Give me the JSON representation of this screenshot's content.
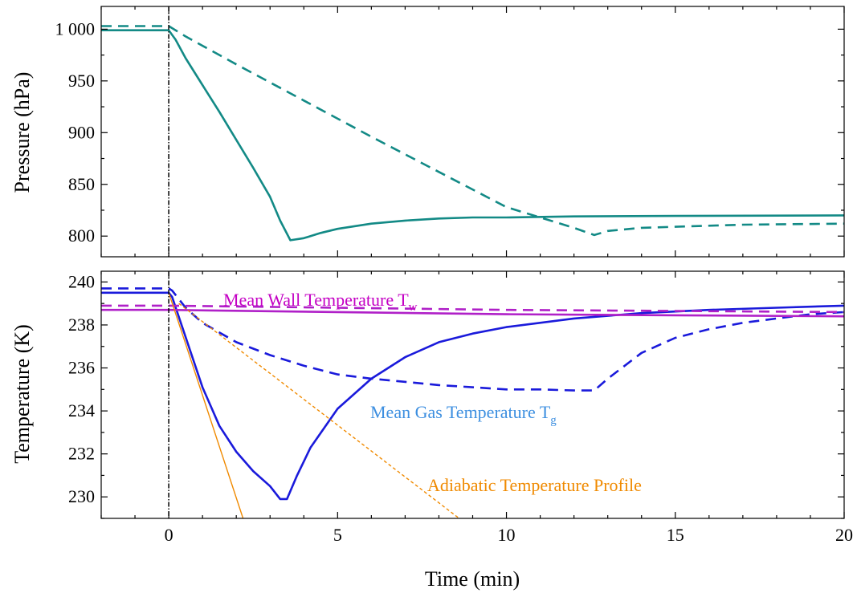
{
  "chart_data": [
    {
      "type": "line",
      "panel": "top",
      "xlabel": "",
      "ylabel": "Pressure (hPa)",
      "xlim": [
        -2,
        20
      ],
      "ylim": [
        780,
        1022
      ],
      "yticks": [
        800,
        850,
        900,
        950,
        1000
      ],
      "ytick_labels": [
        "800",
        "850",
        "900",
        "950",
        "1 000"
      ],
      "series": [
        {
          "style": "solid",
          "color": "#138a86",
          "x": [
            -2,
            0,
            0.2,
            0.5,
            1,
            1.5,
            2,
            2.5,
            3,
            3.3,
            3.6,
            4,
            4.5,
            5,
            6,
            7,
            8,
            9,
            10,
            12,
            15,
            20
          ],
          "y": [
            999,
            999,
            990,
            972,
            946,
            920,
            893,
            866,
            838,
            815,
            796,
            798,
            803,
            807,
            812,
            815,
            817,
            818,
            818,
            819,
            819.5,
            820
          ]
        },
        {
          "style": "dashed",
          "color": "#138a86",
          "x": [
            -2,
            0,
            0.5,
            2,
            4,
            6,
            8,
            10,
            12,
            12.6,
            13,
            14,
            15,
            17,
            20
          ],
          "y": [
            1003,
            1003,
            993,
            966,
            931,
            896,
            862,
            828,
            808,
            801,
            805,
            808,
            809,
            811,
            812
          ]
        }
      ]
    },
    {
      "type": "line",
      "panel": "bottom",
      "xlabel": "Time (min)",
      "ylabel": "Temperature (K)",
      "xlim": [
        -2,
        20
      ],
      "ylim": [
        229,
        240.5
      ],
      "xticks": [
        0,
        5,
        10,
        15,
        20
      ],
      "xtick_labels": [
        "0",
        "5",
        "10",
        "15",
        "20"
      ],
      "yticks": [
        230,
        232,
        234,
        236,
        238,
        240
      ],
      "ytick_labels": [
        "230",
        "232",
        "234",
        "236",
        "238",
        "240"
      ],
      "series": [
        {
          "style": "solid",
          "color": "#1a1adb",
          "x": [
            -2,
            0,
            0.1,
            0.4,
            1,
            1.5,
            2,
            2.5,
            3,
            3.3,
            3.5,
            3.8,
            4.2,
            5,
            6,
            7,
            8,
            9,
            10,
            12,
            14,
            16,
            18,
            20
          ],
          "y": [
            239.5,
            239.5,
            239.3,
            237.9,
            235.1,
            233.3,
            232.1,
            231.2,
            230.5,
            229.9,
            229.9,
            231.0,
            232.3,
            234.1,
            235.5,
            236.5,
            237.2,
            237.6,
            237.9,
            238.3,
            238.55,
            238.7,
            238.8,
            238.9
          ]
        },
        {
          "style": "dashed",
          "color": "#1a1adb",
          "x": [
            -2,
            0,
            0.1,
            0.5,
            1,
            2,
            3,
            4,
            5,
            6,
            8,
            10,
            11,
            12,
            12.6,
            13,
            14,
            15,
            16,
            17,
            18,
            19,
            20
          ],
          "y": [
            239.7,
            239.7,
            239.6,
            238.8,
            238.1,
            237.2,
            236.6,
            236.1,
            235.7,
            235.5,
            235.2,
            235.0,
            235.0,
            234.95,
            234.95,
            235.5,
            236.7,
            237.4,
            237.8,
            238.1,
            238.3,
            238.5,
            238.6
          ]
        },
        {
          "style": "solid",
          "color": "#b020c8",
          "x": [
            -2,
            0,
            5,
            10,
            15,
            20
          ],
          "y": [
            238.7,
            238.7,
            238.6,
            238.5,
            238.45,
            238.4
          ]
        },
        {
          "style": "dashed",
          "color": "#b020c8",
          "x": [
            -2,
            0,
            5,
            10,
            15,
            20
          ],
          "y": [
            238.9,
            238.9,
            238.8,
            238.7,
            238.65,
            238.6
          ]
        },
        {
          "style": "solid-thin",
          "color": "#f08a00",
          "x": [
            0,
            2.2
          ],
          "y": [
            239.5,
            229
          ]
        },
        {
          "style": "dotted-thin",
          "color": "#f08a00",
          "x": [
            0.3,
            8.6
          ],
          "y": [
            239.0,
            229
          ]
        }
      ],
      "annotations": [
        {
          "text": "Mean Wall Temperature T",
          "sub": "w",
          "color": "#c400c4"
        },
        {
          "text": "Mean Gas Temperature T",
          "sub": "g",
          "color": "#3d8fe0"
        },
        {
          "text": "Adiabatic Temperature Profile",
          "sub": "",
          "color": "#f08a00"
        }
      ]
    }
  ]
}
